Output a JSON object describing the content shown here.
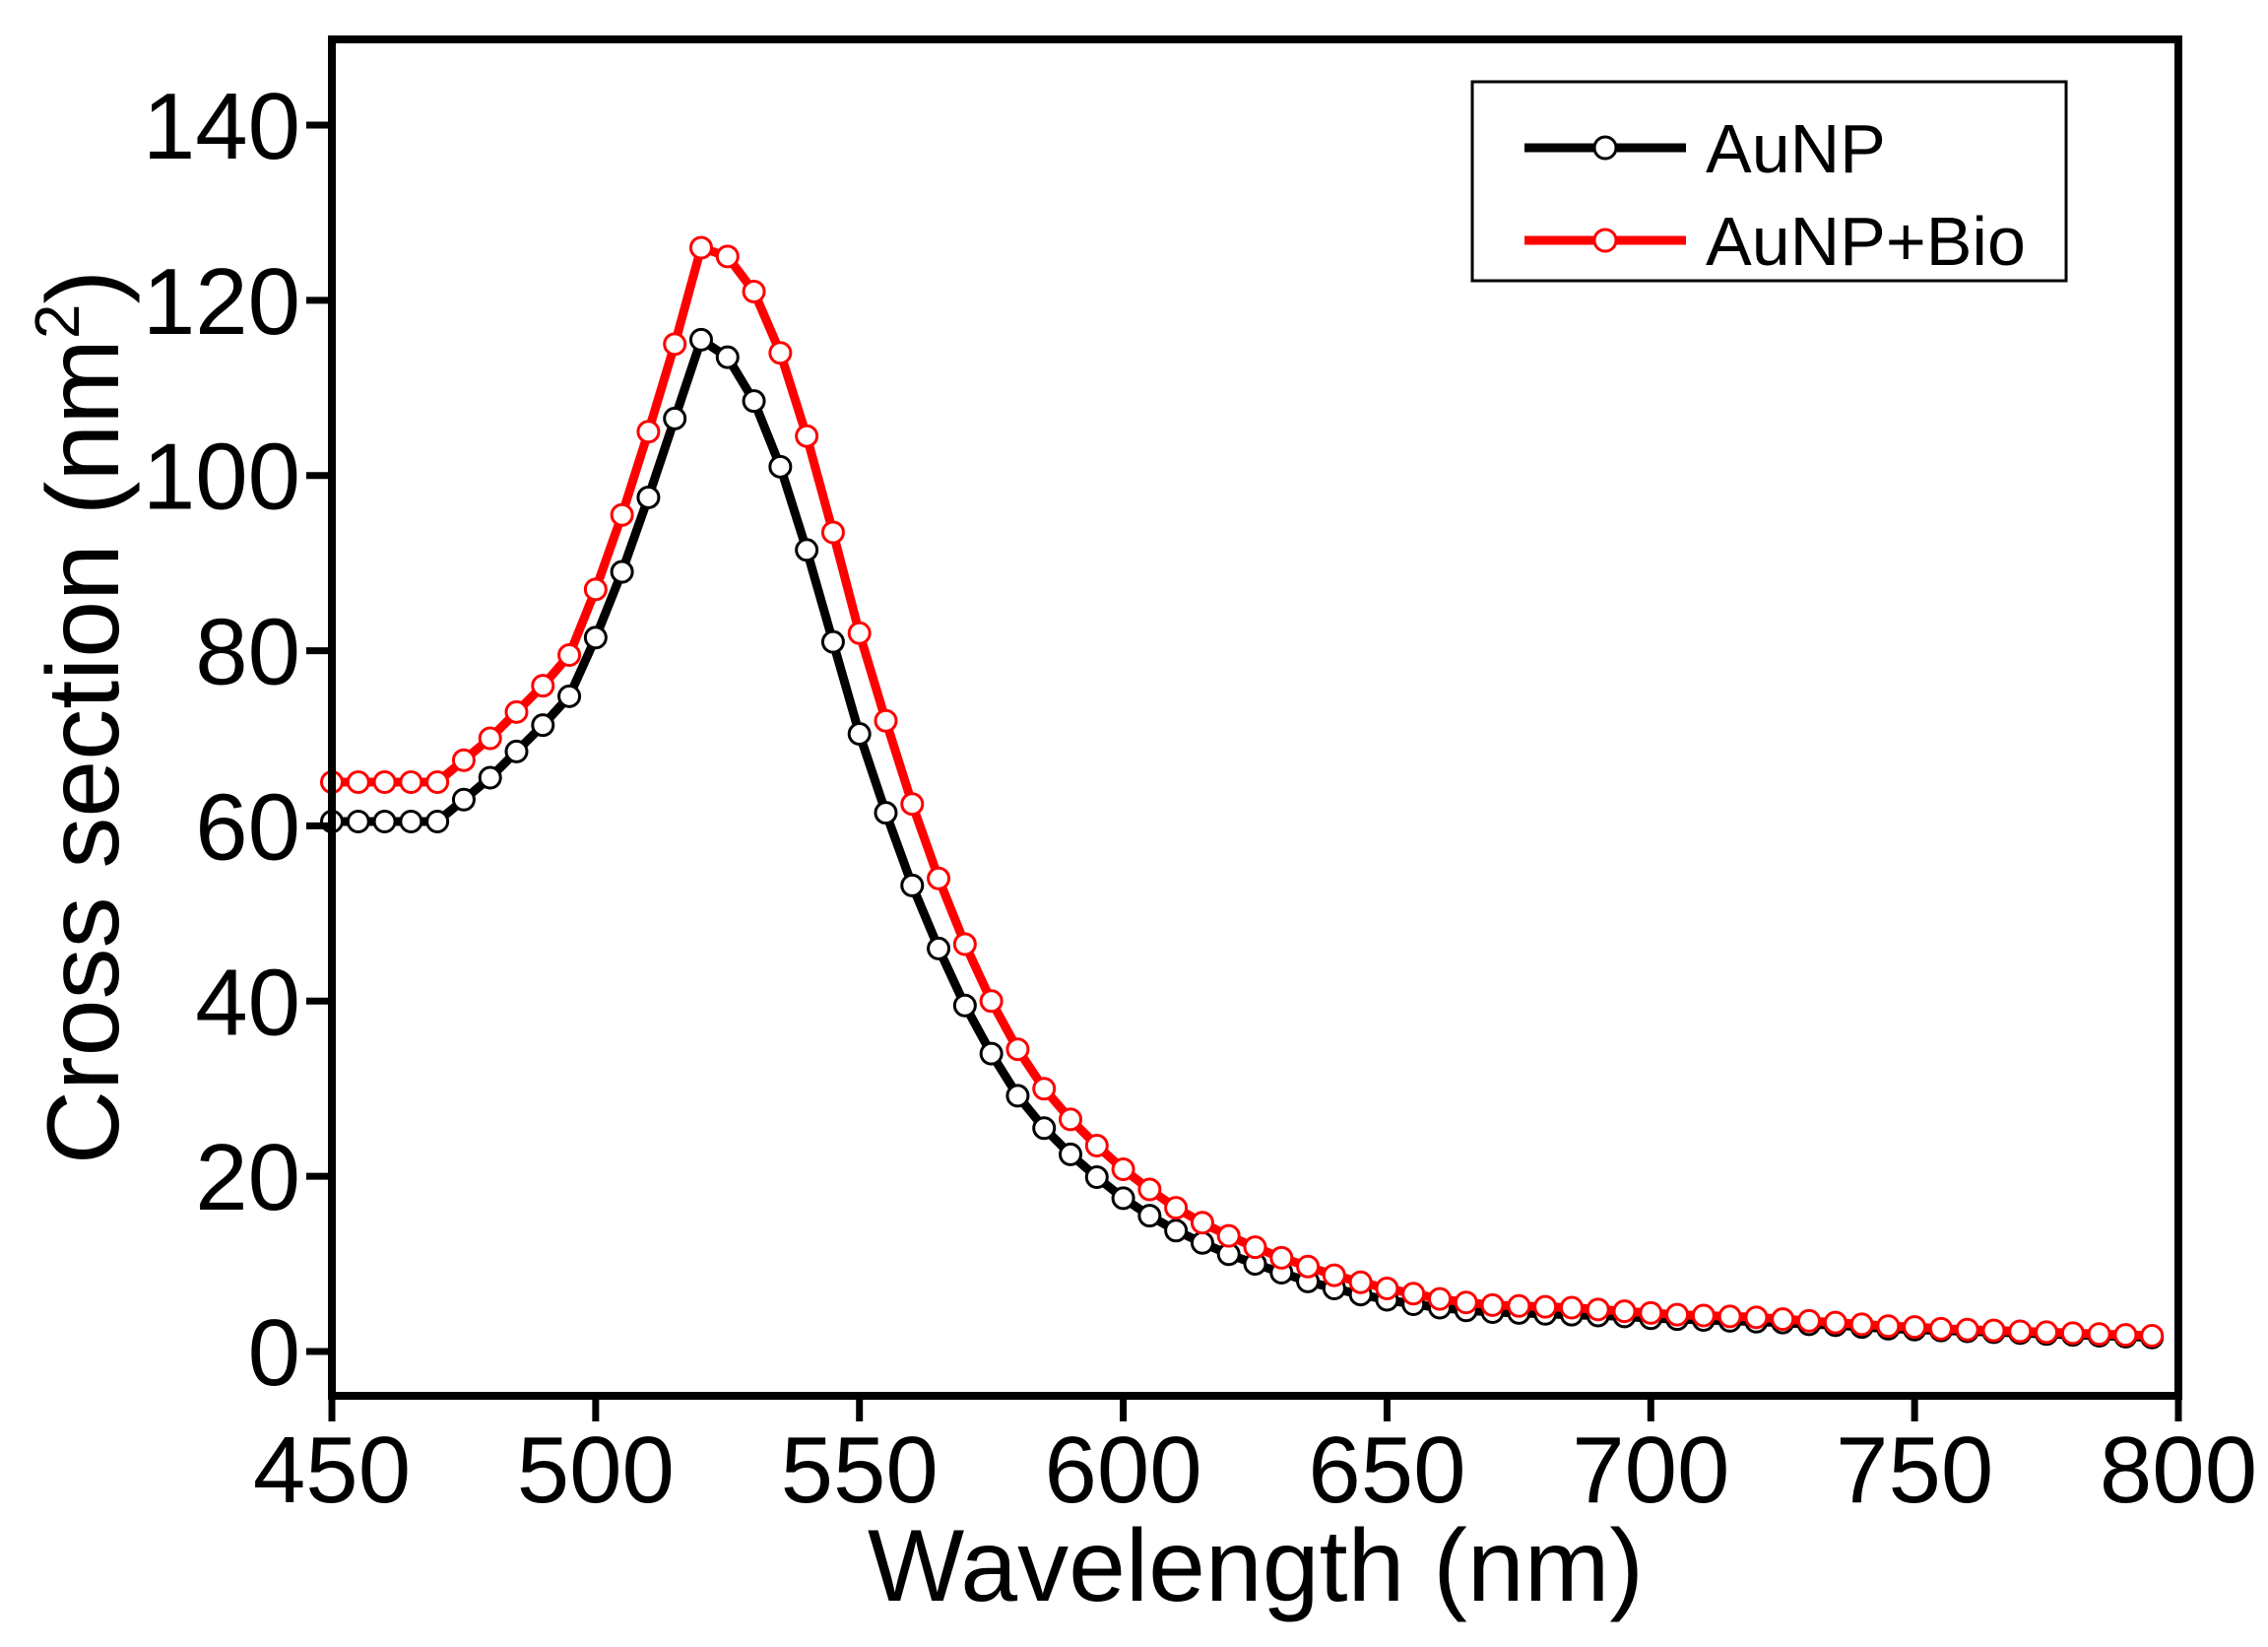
{
  "chart_data": {
    "type": "line",
    "title": "",
    "xlabel": "Wavelength (nm)",
    "ylabel_main": "Cross section (nm",
    "ylabel_sup": "2",
    "ylabel_close": ")",
    "xlim": [
      450,
      800
    ],
    "ylim": [
      -5,
      150
    ],
    "xticks": [
      450,
      500,
      550,
      600,
      650,
      700,
      750,
      800
    ],
    "yticks": [
      0,
      20,
      40,
      60,
      80,
      100,
      120,
      140
    ],
    "grid": false,
    "legend_position": "top-right",
    "x": [
      450,
      455,
      460,
      465,
      470,
      475,
      480,
      485,
      490,
      495,
      500,
      505,
      510,
      515,
      520,
      525,
      530,
      535,
      540,
      545,
      550,
      555,
      560,
      565,
      570,
      575,
      580,
      585,
      590,
      595,
      600,
      605,
      610,
      615,
      620,
      625,
      630,
      635,
      640,
      645,
      650,
      655,
      660,
      665,
      670,
      675,
      680,
      685,
      690,
      695,
      700,
      705,
      710,
      715,
      720,
      725,
      730,
      735,
      740,
      745,
      750,
      755,
      760,
      765,
      770,
      775,
      780,
      785,
      790,
      795
    ],
    "series": [
      {
        "name": "AuNP",
        "color": "#000000",
        "values": [
          60.5,
          60.5,
          60.5,
          60.5,
          60.5,
          63.0,
          65.5,
          68.5,
          71.5,
          74.8,
          81.5,
          89.0,
          97.5,
          106.5,
          115.5,
          113.5,
          108.5,
          101.0,
          91.5,
          81.0,
          70.5,
          61.5,
          53.2,
          46.0,
          39.5,
          34.0,
          29.2,
          25.5,
          22.5,
          19.9,
          17.5,
          15.5,
          13.8,
          12.4,
          11.1,
          10.0,
          9.0,
          8.0,
          7.2,
          6.5,
          5.9,
          5.4,
          5.0,
          4.7,
          4.5,
          4.4,
          4.3,
          4.2,
          4.1,
          4.0,
          3.8,
          3.7,
          3.6,
          3.5,
          3.4,
          3.3,
          3.1,
          3.0,
          2.8,
          2.6,
          2.5,
          2.4,
          2.3,
          2.2,
          2.1,
          2.0,
          1.9,
          1.8,
          1.7,
          1.6
        ]
      },
      {
        "name": "AuNP+Bio",
        "color": "#ff0000",
        "values": [
          65.0,
          65.0,
          65.0,
          65.0,
          65.0,
          67.5,
          70.0,
          73.0,
          76.0,
          79.5,
          87.0,
          95.5,
          105.0,
          115.0,
          126.0,
          125.0,
          121.0,
          114.0,
          104.5,
          93.5,
          82.0,
          72.0,
          62.5,
          54.0,
          46.5,
          40.0,
          34.5,
          30.0,
          26.5,
          23.5,
          20.8,
          18.5,
          16.4,
          14.7,
          13.2,
          11.9,
          10.7,
          9.7,
          8.7,
          7.9,
          7.2,
          6.6,
          6.0,
          5.6,
          5.3,
          5.2,
          5.1,
          5.0,
          4.8,
          4.6,
          4.4,
          4.2,
          4.1,
          4.0,
          3.9,
          3.7,
          3.5,
          3.3,
          3.1,
          2.9,
          2.8,
          2.6,
          2.5,
          2.4,
          2.3,
          2.2,
          2.1,
          2.0,
          1.9,
          1.8
        ]
      }
    ]
  }
}
